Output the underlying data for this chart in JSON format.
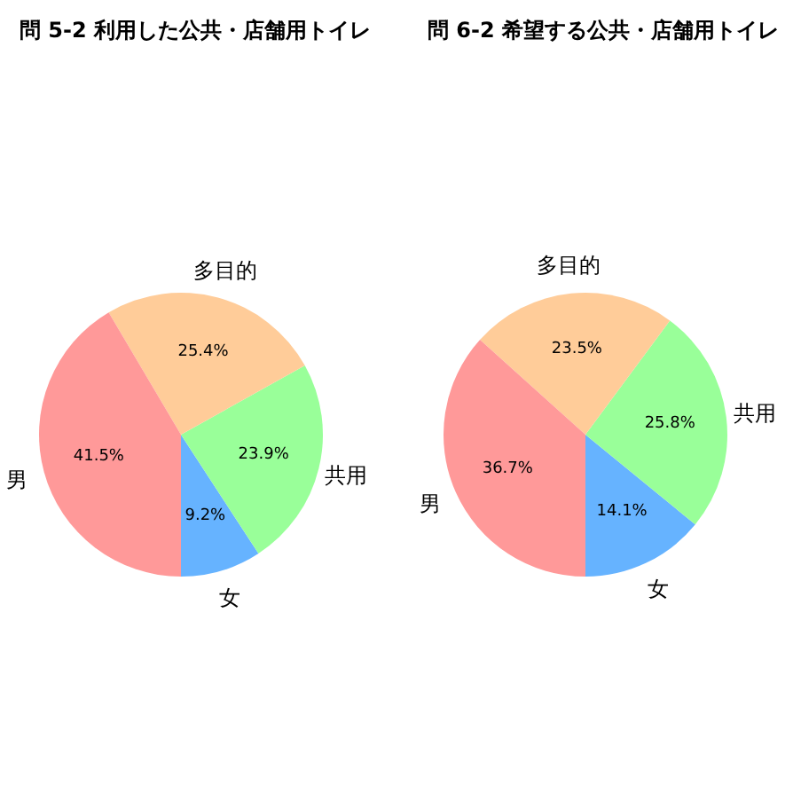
{
  "chart_data": [
    {
      "type": "pie",
      "title": "問 5-2 利用した公共・店舗用トイレ",
      "categories": [
        "女",
        "共用",
        "多目的",
        "男"
      ],
      "values": [
        9.2,
        23.9,
        25.4,
        41.5
      ],
      "colors": [
        "#66b3ff",
        "#99ff99",
        "#ffcc99",
        "#ff9999"
      ],
      "value_labels": [
        "9.2%",
        "23.9%",
        "25.4%",
        "41.5%"
      ]
    },
    {
      "type": "pie",
      "title": "問 6-2 希望する公共・店舗用トイレ",
      "categories": [
        "女",
        "共用",
        "多目的",
        "男"
      ],
      "values": [
        14.1,
        25.8,
        23.5,
        36.7
      ],
      "colors": [
        "#66b3ff",
        "#99ff99",
        "#ffcc99",
        "#ff9999"
      ],
      "value_labels": [
        "14.1%",
        "25.8%",
        "23.5%",
        "36.7%"
      ]
    }
  ]
}
